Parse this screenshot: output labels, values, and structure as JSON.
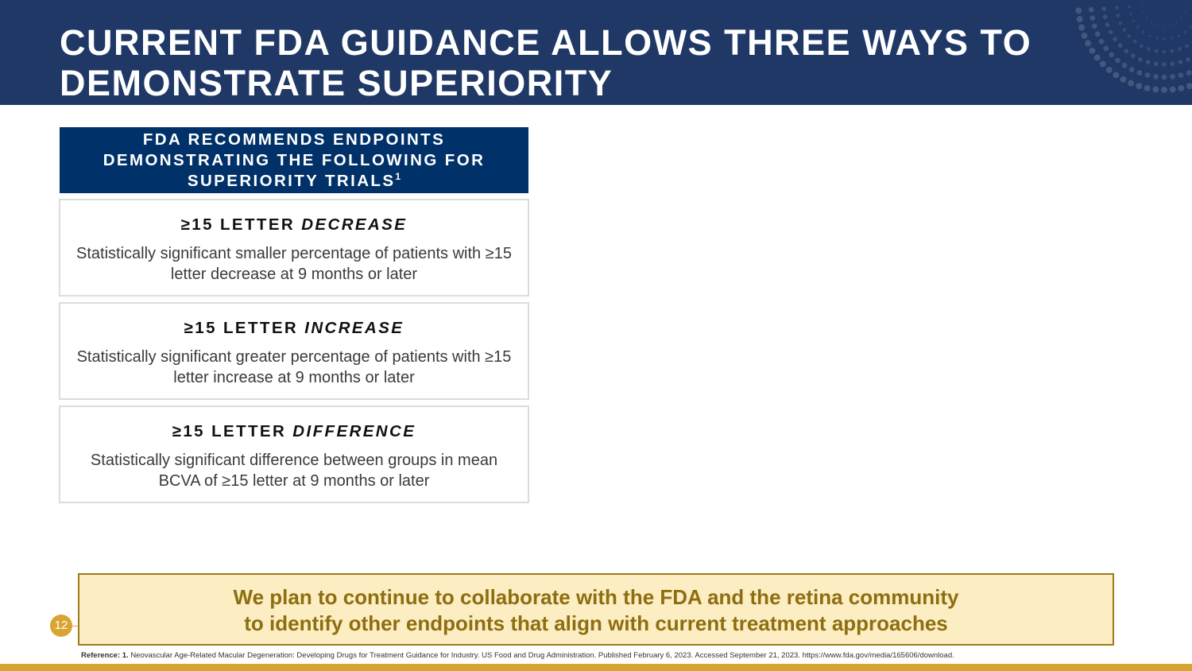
{
  "header": {
    "title": "CURRENT FDA GUIDANCE ALLOWS THREE WAYS TO DEMONSTRATE SUPERIORITY",
    "background_color": "#1f3866"
  },
  "panel": {
    "heading": "FDA RECOMMENDS ENDPOINTS DEMONSTRATING THE FOLLOWING FOR SUPERIORITY TRIALS",
    "heading_superscript": "1",
    "heading_color": "#003168",
    "cards": [
      {
        "title_prefix": "≥15 LETTER",
        "title_emphasis": "DECREASE",
        "description": "Statistically significant smaller percentage of patients with ≥15 letter decrease at 9 months or later"
      },
      {
        "title_prefix": "≥15 LETTER",
        "title_emphasis": "INCREASE",
        "description": "Statistically significant greater percentage of patients with ≥15 letter increase at 9 months or later"
      },
      {
        "title_prefix": "≥15 LETTER",
        "title_emphasis": "DIFFERENCE",
        "description": "Statistically significant difference between groups in mean BCVA of ≥15 letter at 9 months or later"
      }
    ]
  },
  "callout": {
    "line1": "We plan to continue to collaborate with the FDA and the retina community",
    "line2": "to identify other endpoints that align with current treatment approaches",
    "background_color": "#fcedc2",
    "text_color": "#8d6e10"
  },
  "page_number": "12",
  "reference": {
    "label": "Reference: 1.",
    "text": "Neovascular Age-Related Macular Degeneration: Developing Drugs  for Treatment Guidance for Industry. US Food and Drug Administration. Published February 6, 2023. Accessed September 21, 2023. https://www.fda.gov/media/165606/download."
  },
  "accent_color": "#d9a532"
}
